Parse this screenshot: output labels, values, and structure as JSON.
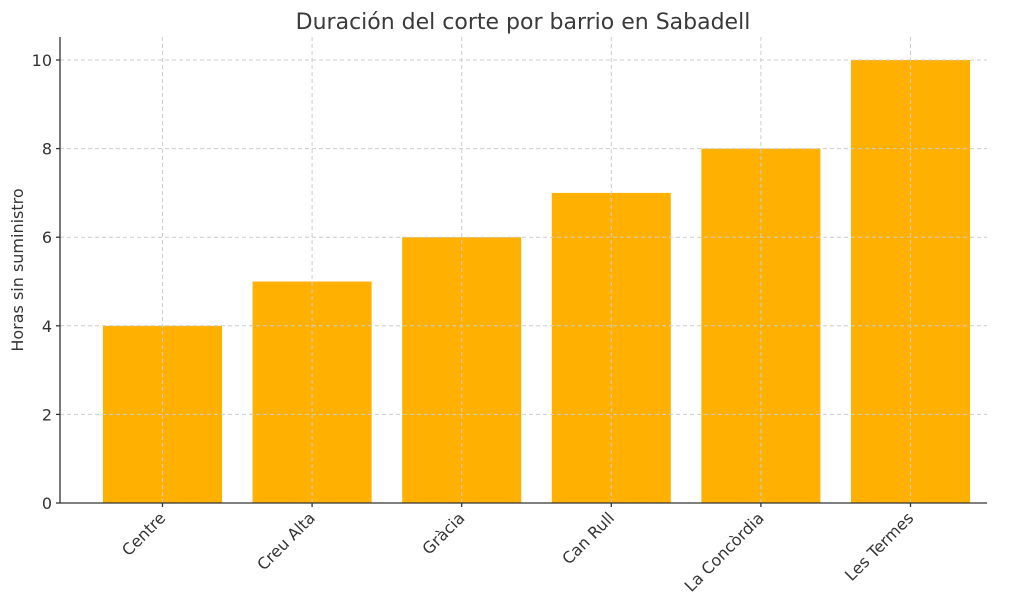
{
  "chart_data": {
    "type": "bar",
    "title": "Duración del corte por barrio en Sabadell",
    "xlabel": "",
    "ylabel": "Horas sin suministro",
    "categories": [
      "Centre",
      "Creu Alta",
      "Gràcia",
      "Can Rull",
      "La Concòrdia",
      "Les Termes"
    ],
    "values": [
      4,
      5,
      6,
      7,
      8,
      10
    ],
    "ylim": [
      0,
      10.5
    ],
    "yticks": [
      0,
      2,
      4,
      6,
      8,
      10
    ],
    "grid": true,
    "grid_style": "dashed",
    "legend": null,
    "bar_color": "#FFB000",
    "xtick_rotation": 45
  }
}
